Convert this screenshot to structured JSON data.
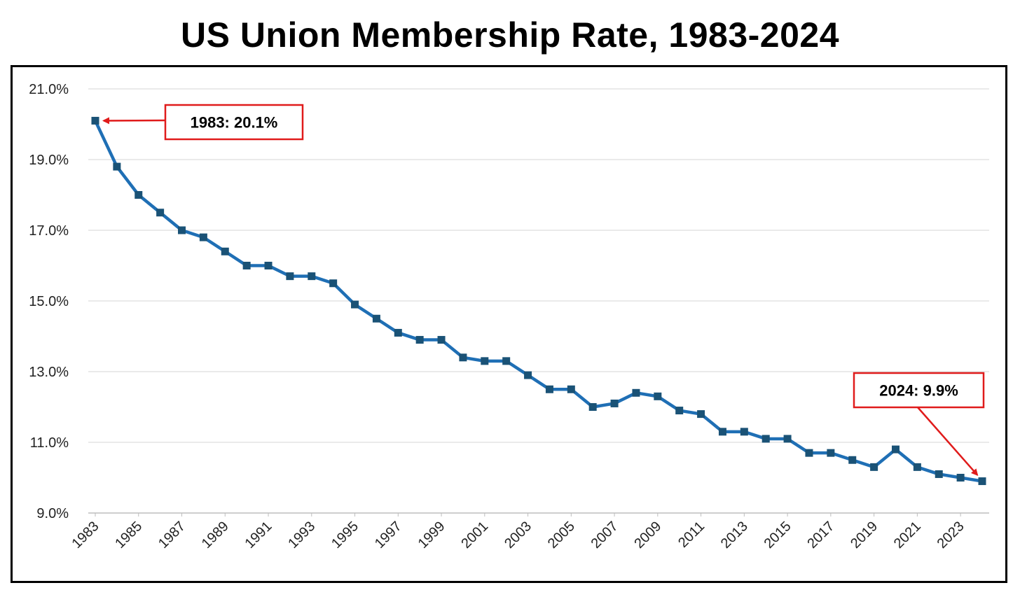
{
  "chart_data": {
    "type": "line",
    "title": "US Union Membership Rate, 1983-2024",
    "xlabel": "",
    "ylabel": "",
    "x": [
      1983,
      1984,
      1985,
      1986,
      1987,
      1988,
      1989,
      1990,
      1991,
      1992,
      1993,
      1994,
      1995,
      1996,
      1997,
      1998,
      1999,
      2000,
      2001,
      2002,
      2003,
      2004,
      2005,
      2006,
      2007,
      2008,
      2009,
      2010,
      2011,
      2012,
      2013,
      2014,
      2015,
      2016,
      2017,
      2018,
      2019,
      2020,
      2021,
      2022,
      2023,
      2024
    ],
    "x_tick_labels": [
      "1983",
      "1985",
      "1987",
      "1989",
      "1991",
      "1993",
      "1995",
      "1997",
      "1999",
      "2001",
      "2003",
      "2005",
      "2007",
      "2009",
      "2011",
      "2013",
      "2015",
      "2017",
      "2019",
      "2021",
      "2023"
    ],
    "series": [
      {
        "name": "Union membership rate",
        "color": "#1f6fb5",
        "marker_color": "#1a5276",
        "values": [
          20.1,
          18.8,
          18.0,
          17.5,
          17.0,
          16.8,
          16.4,
          16.0,
          16.0,
          15.7,
          15.7,
          15.5,
          14.9,
          14.5,
          14.1,
          13.9,
          13.9,
          13.4,
          13.3,
          13.3,
          12.9,
          12.5,
          12.5,
          12.0,
          12.1,
          12.4,
          12.3,
          11.9,
          11.8,
          11.3,
          11.3,
          11.1,
          11.1,
          10.7,
          10.7,
          10.5,
          10.3,
          10.8,
          10.3,
          10.1,
          10.0,
          9.9
        ]
      }
    ],
    "ylim": [
      9.0,
      21.0
    ],
    "y_ticks": [
      9.0,
      11.0,
      13.0,
      15.0,
      17.0,
      19.0,
      21.0
    ],
    "y_tick_labels": [
      "9.0%",
      "11.0%",
      "13.0%",
      "15.0%",
      "17.0%",
      "19.0%",
      "21.0%"
    ],
    "grid": true,
    "annotations": [
      {
        "text": "1983: 20.1%",
        "x": 1983,
        "y": 20.1,
        "color": "#e01b1b"
      },
      {
        "text": "2024: 9.9%",
        "x": 2024,
        "y": 9.9,
        "color": "#e01b1b"
      }
    ]
  }
}
